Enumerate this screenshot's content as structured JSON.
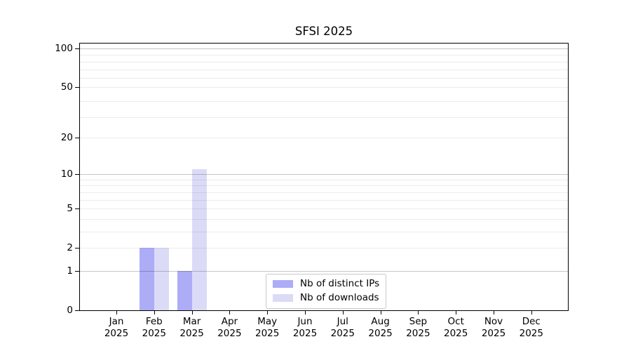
{
  "chart_data": {
    "type": "bar",
    "title": "SFSI 2025",
    "categories": [
      "Jan 2025",
      "Feb 2025",
      "Mar 2025",
      "Apr 2025",
      "May 2025",
      "Jun 2025",
      "Jul 2025",
      "Aug 2025",
      "Sep 2025",
      "Oct 2025",
      "Nov 2025",
      "Dec 2025"
    ],
    "months": [
      "Jan",
      "Feb",
      "Mar",
      "Apr",
      "May",
      "Jun",
      "Jul",
      "Aug",
      "Sep",
      "Oct",
      "Nov",
      "Dec"
    ],
    "year": "2025",
    "series": [
      {
        "name": "Nb of distinct IPs",
        "color": "#acacf7",
        "values": [
          0,
          2,
          1,
          0,
          0,
          0,
          0,
          0,
          0,
          0,
          0,
          0
        ]
      },
      {
        "name": "Nb of downloads",
        "color": "#dbdbf8",
        "values": [
          0,
          2,
          11,
          0,
          0,
          0,
          0,
          0,
          0,
          0,
          0,
          0
        ]
      }
    ],
    "y_ticks": [
      0,
      1,
      2,
      5,
      10,
      20,
      50,
      100
    ],
    "y_minor_gridlines": [
      2,
      3,
      4,
      5,
      6,
      7,
      8,
      9,
      20,
      29,
      39,
      50,
      59,
      69,
      79,
      89
    ],
    "y_major_gridlines": [
      1,
      10,
      100
    ],
    "y_scale": "log(1+x)",
    "ylim": [
      0,
      112
    ],
    "xlabel": "",
    "ylabel": "",
    "grid": true,
    "legend_position": "lower center"
  },
  "colors": {
    "axis": "#000000",
    "background": "#ffffff",
    "grid_minor": "#ececec",
    "grid_major": "#c7c7c7",
    "legend_border": "#c9c9c9",
    "series_distinct_ips": "#acacf7",
    "series_downloads": "#dbdbf8"
  }
}
